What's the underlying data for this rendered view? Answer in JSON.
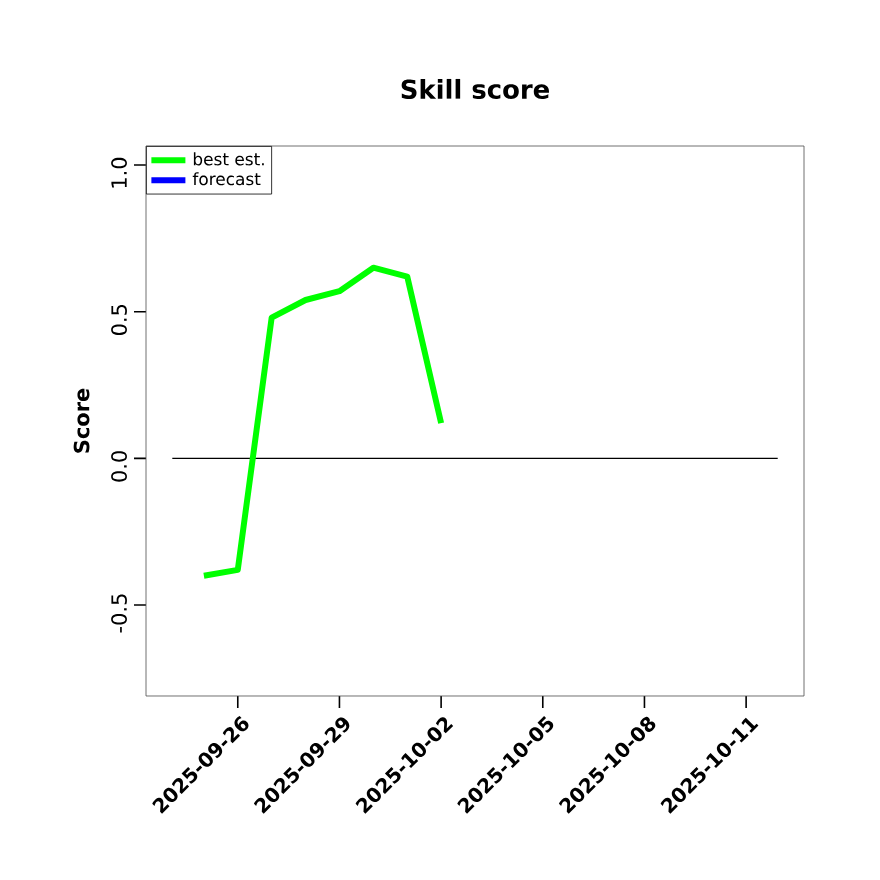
{
  "chart_data": {
    "type": "line",
    "title": "Skill score",
    "ylabel": "Score",
    "x": [
      "2025-09-25",
      "2025-09-26",
      "2025-09-27",
      "2025-09-28",
      "2025-09-29",
      "2025-09-30",
      "2025-10-01",
      "2025-10-02"
    ],
    "series": [
      {
        "name": "best est.",
        "color": "#00ff00",
        "values": [
          -0.4,
          -0.38,
          0.48,
          0.54,
          0.57,
          0.65,
          0.62,
          0.12
        ]
      },
      {
        "name": "forecast",
        "color": "#0000ff",
        "values": [
          null,
          null,
          null,
          null,
          null,
          null,
          null,
          null
        ]
      }
    ],
    "xlim": [
      "2025-09-23T07:00",
      "2025-10-12T17:00"
    ],
    "xticks": [
      "2025-09-26",
      "2025-09-29",
      "2025-10-02",
      "2025-10-05",
      "2025-10-08",
      "2025-10-11"
    ],
    "ylim": [
      -0.81,
      1.065
    ],
    "yticks": [
      -0.5,
      {
        "value": 0,
        "label": "0.0"
      },
      0.5,
      {
        "value": 1,
        "label": "1.0"
      }
    ],
    "ref_lines": [
      {
        "axis": "y",
        "value": 0,
        "color": "#000000"
      }
    ],
    "legend": "top left",
    "grid": false,
    "marker": "none",
    "line_style": "solid"
  }
}
